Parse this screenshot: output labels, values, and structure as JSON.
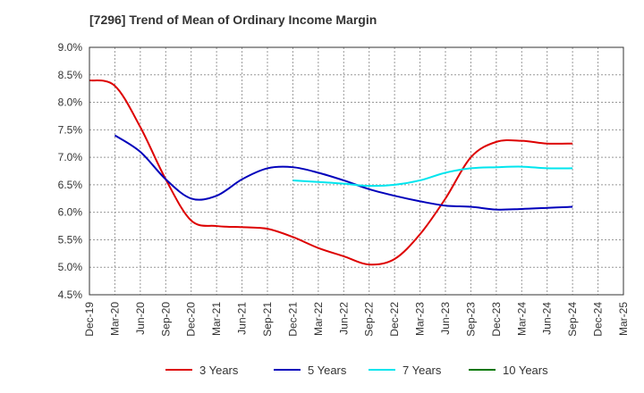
{
  "title": "[7296]  Trend of Mean of Ordinary Income Margin",
  "chart_data": {
    "type": "line",
    "title": "[7296]  Trend of Mean of Ordinary Income Margin",
    "x_ticks": [
      "Dec-19",
      "Mar-20",
      "Jun-20",
      "Sep-20",
      "Dec-20",
      "Mar-21",
      "Jun-21",
      "Sep-21",
      "Dec-21",
      "Mar-22",
      "Jun-22",
      "Sep-22",
      "Dec-22",
      "Mar-23",
      "Jun-23",
      "Sep-23",
      "Dec-23",
      "Mar-24",
      "Jun-24",
      "Sep-24",
      "Dec-24",
      "Mar-25"
    ],
    "y_ticks": [
      "4.5%",
      "5.0%",
      "5.5%",
      "6.0%",
      "6.5%",
      "7.0%",
      "7.5%",
      "8.0%",
      "8.5%",
      "9.0%"
    ],
    "ylim": [
      4.5,
      9.0
    ],
    "grid": true,
    "legend_position": "bottom",
    "series": [
      {
        "name": "3 Years",
        "color": "#dd0000",
        "values": [
          8.4,
          8.3,
          7.55,
          6.6,
          5.85,
          5.75,
          5.73,
          5.7,
          5.55,
          5.35,
          5.2,
          5.05,
          5.15,
          5.6,
          6.25,
          7.0,
          7.28,
          7.3,
          7.25,
          7.25
        ]
      },
      {
        "name": "5 Years",
        "color": "#0000bb",
        "values": [
          null,
          7.4,
          7.1,
          6.6,
          6.25,
          6.3,
          6.6,
          6.8,
          6.82,
          6.72,
          6.58,
          6.42,
          6.3,
          6.2,
          6.12,
          6.1,
          6.05,
          6.06,
          6.08,
          6.1
        ]
      },
      {
        "name": "7 Years",
        "color": "#00e5ee",
        "values": [
          null,
          null,
          null,
          null,
          null,
          null,
          null,
          null,
          6.58,
          6.55,
          6.52,
          6.48,
          6.5,
          6.58,
          6.72,
          6.8,
          6.82,
          6.83,
          6.8,
          6.8
        ]
      },
      {
        "name": "10 Years",
        "color": "#007700",
        "values": []
      }
    ]
  }
}
